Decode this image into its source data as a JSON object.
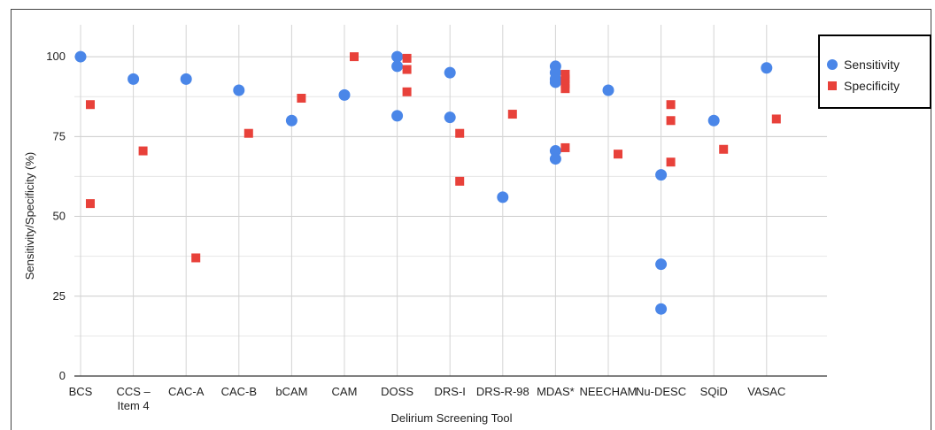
{
  "chart_data": {
    "type": "scatter",
    "title": "",
    "xlabel": "Delirium Screening Tool",
    "ylabel": "Sensitivity/Specificity (%)",
    "ylim": [
      0,
      110
    ],
    "yticks": [
      0,
      25,
      50,
      75,
      100
    ],
    "grid": true,
    "legend_position": "top-right",
    "categories": [
      [
        "BCS"
      ],
      [
        "CCS –",
        "Item 4"
      ],
      [
        "CAC-A"
      ],
      [
        "CAC-B"
      ],
      [
        "bCAM"
      ],
      [
        "CAM"
      ],
      [
        "DOSS"
      ],
      [
        "DRS-I"
      ],
      [
        "DRS-R-98"
      ],
      [
        "MDAS*"
      ],
      [
        "NEECHAM"
      ],
      [
        "Nu-DESC"
      ],
      [
        "SQiD"
      ],
      [
        "VASAC"
      ]
    ],
    "series": [
      {
        "name": "Sensitivity",
        "color": "#4a86e8",
        "marker": "circle",
        "points": [
          [
            0,
            100
          ],
          [
            1,
            93
          ],
          [
            2,
            93
          ],
          [
            3,
            89.5
          ],
          [
            4,
            80
          ],
          [
            5,
            88
          ],
          [
            6,
            100
          ],
          [
            6,
            97
          ],
          [
            6,
            81.5
          ],
          [
            7,
            95
          ],
          [
            7,
            81
          ],
          [
            8,
            56
          ],
          [
            9,
            97
          ],
          [
            9,
            95
          ],
          [
            9,
            93
          ],
          [
            9,
            92
          ],
          [
            9,
            70.5
          ],
          [
            9,
            68
          ],
          [
            10,
            89.5
          ],
          [
            11,
            63
          ],
          [
            11,
            35
          ],
          [
            11,
            21
          ],
          [
            12,
            80
          ],
          [
            13,
            96.5
          ]
        ]
      },
      {
        "name": "Specificity",
        "color": "#e8413a",
        "marker": "square",
        "points": [
          [
            0,
            85
          ],
          [
            0,
            54
          ],
          [
            1,
            70.5
          ],
          [
            2,
            37
          ],
          [
            3,
            76
          ],
          [
            4,
            87
          ],
          [
            5,
            100
          ],
          [
            6,
            99.5
          ],
          [
            6,
            96
          ],
          [
            6,
            89
          ],
          [
            7,
            76
          ],
          [
            7,
            61
          ],
          [
            8,
            82
          ],
          [
            9,
            94.5
          ],
          [
            9,
            93
          ],
          [
            9,
            91.5
          ],
          [
            9,
            90
          ],
          [
            9,
            71.5
          ],
          [
            10,
            69.5
          ],
          [
            11,
            85
          ],
          [
            11,
            80
          ],
          [
            11,
            67
          ],
          [
            12,
            71
          ],
          [
            13,
            80.5
          ]
        ]
      }
    ]
  }
}
